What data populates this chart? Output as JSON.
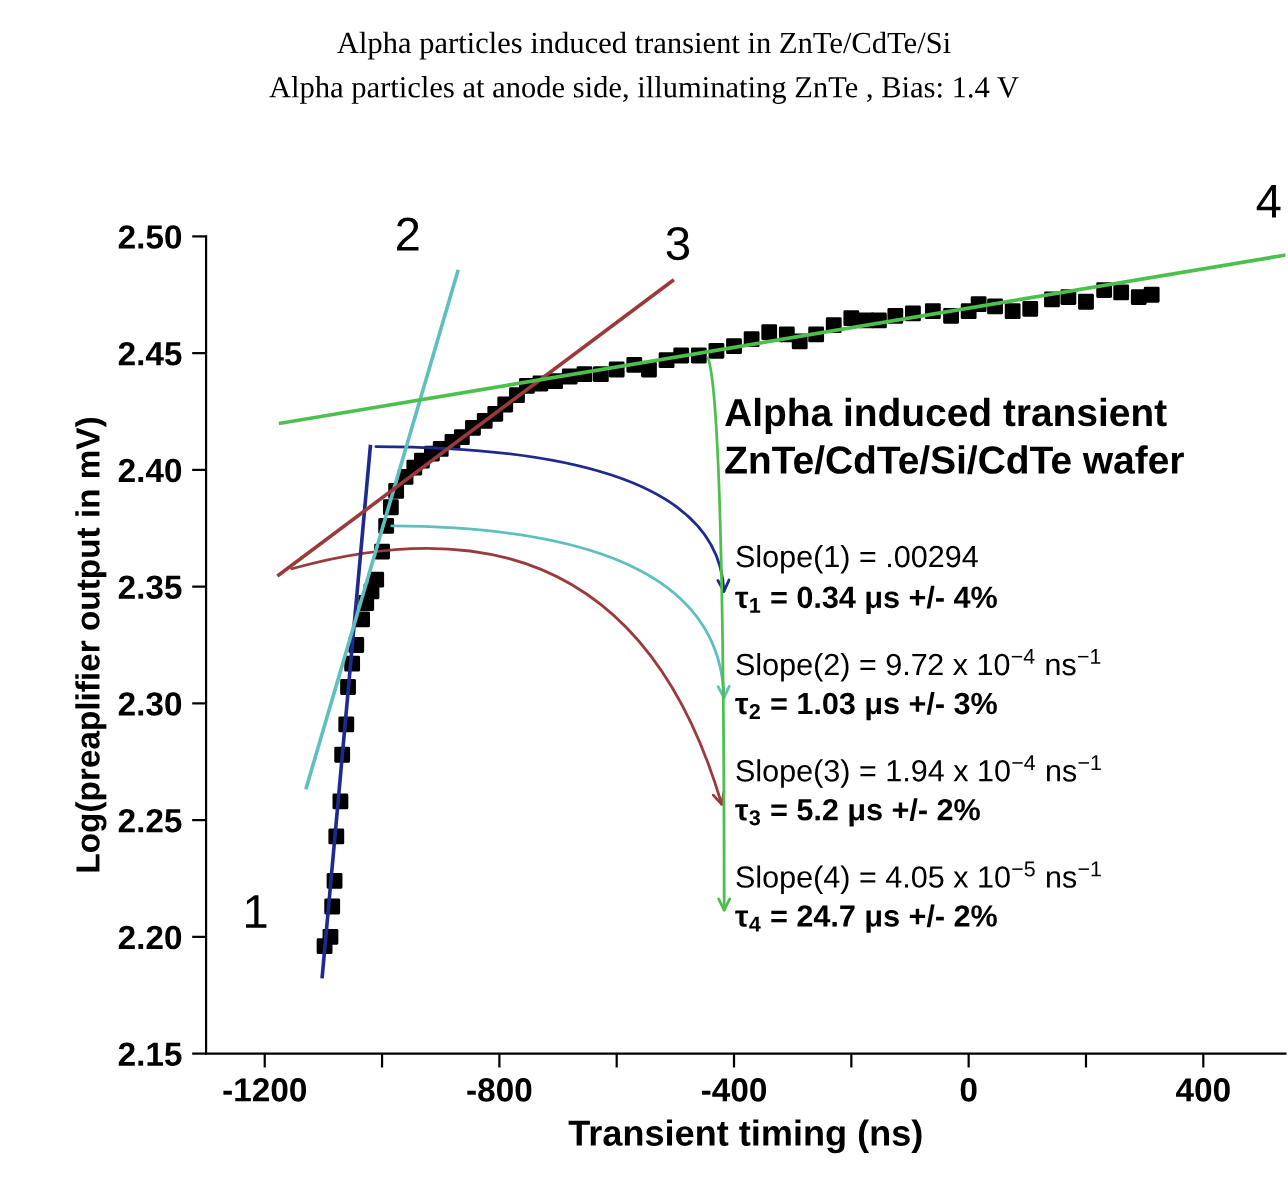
{
  "chart_data": {
    "type": "scatter",
    "title": "Alpha particles induced transient in ZnTe/CdTe/Si",
    "subtitle": "Alpha particles at anode side, illuminating ZnTe , Bias: 1.4 V",
    "xlabel": "Transient timing (ns)",
    "ylabel": "Log(preaplifier output in mV)",
    "xlim": [
      -1300,
      540
    ],
    "ylim": [
      2.15,
      2.5
    ],
    "xticks": [
      -1200,
      {
        "value": -1000,
        "label": null
      },
      -800,
      {
        "value": -600,
        "label": null
      },
      -400,
      {
        "value": -200,
        "label": null
      },
      0,
      {
        "value": 200,
        "label": null
      },
      400
    ],
    "yticks": [
      {
        "value": 2.15,
        "label": "2.15"
      },
      {
        "value": 2.2,
        "label": "2.20"
      },
      {
        "value": 2.25,
        "label": "2.25"
      },
      {
        "value": 2.3,
        "label": "2.30"
      },
      {
        "value": 2.35,
        "label": "2.35"
      },
      {
        "value": 2.4,
        "label": "2.40"
      },
      {
        "value": 2.45,
        "label": "2.45"
      },
      {
        "value": 2.5,
        "label": "2.50"
      }
    ],
    "grid": false,
    "legend": false,
    "marker": "square",
    "series": [
      {
        "color": "#000000",
        "x": [
          -1098,
          -1088,
          -1085,
          -1081,
          -1078,
          -1071,
          -1068,
          -1061,
          -1058,
          -1051,
          -1044,
          -1034,
          -1027,
          -1018,
          -1010,
          -1000,
          -993,
          -985,
          -976,
          -960,
          -945,
          -932,
          -915,
          -900,
          -880,
          -864,
          -845,
          -825,
          -807,
          -790,
          -770,
          -753,
          -730,
          -705,
          -680,
          -655,
          -627,
          -600,
          -570,
          -545,
          -515,
          -490,
          -460,
          -430,
          -400,
          -370,
          -340,
          -310,
          -288,
          -260,
          -230,
          -200,
          -175,
          -153,
          -125,
          -95,
          -61,
          -30,
          0,
          17,
          45,
          75,
          105,
          142,
          170,
          200,
          231,
          260,
          290,
          312
        ],
        "values": [
          2.196,
          2.2,
          2.213,
          2.224,
          2.243,
          2.258,
          2.278,
          2.291,
          2.307,
          2.317,
          2.325,
          2.336,
          2.343,
          2.348,
          2.353,
          2.365,
          2.376,
          2.384,
          2.391,
          2.397,
          2.401,
          2.404,
          2.407,
          2.409,
          2.412,
          2.414,
          2.418,
          2.421,
          2.424,
          2.428,
          2.432,
          2.436,
          2.437,
          2.438,
          2.44,
          2.441,
          2.441,
          2.443,
          2.445,
          2.443,
          2.447,
          2.449,
          2.449,
          2.451,
          2.453,
          2.456,
          2.459,
          2.458,
          2.455,
          2.458,
          2.462,
          2.465,
          2.464,
          2.464,
          2.466,
          2.467,
          2.468,
          2.466,
          2.468,
          2.471,
          2.47,
          2.468,
          2.469,
          2.473,
          2.474,
          2.472,
          2.477,
          2.476,
          2.474,
          2.475
        ]
      },
      {
        "type": "line",
        "marker": "none",
        "name": "1",
        "color": "#1f2a8f",
        "x": [
          -1102,
          -1020
        ],
        "values": [
          2.183,
          2.41
        ]
      },
      {
        "type": "line",
        "marker": "none",
        "name": "2",
        "color": "#5fbfbf",
        "x": [
          -1129,
          -871
        ],
        "values": [
          2.264,
          2.485
        ]
      },
      {
        "type": "line",
        "marker": "none",
        "name": "3",
        "color": "#9b3a3a",
        "x": [
          -1176,
          -505
        ],
        "values": [
          2.355,
          2.481
        ]
      },
      {
        "type": "line",
        "marker": "none",
        "name": "4",
        "color": "#4cc04c",
        "x": [
          -1173,
          540
        ],
        "values": [
          2.42,
          2.492
        ]
      }
    ],
    "annotations": [
      "Alpha induced transient\nZnTe/CdTe/Si/CdTe wafer",
      "Slope(1) = .00294",
      {
        "text": "τ$_{1}$ = 0.34 μs +/- 4%",
        "x": -1020,
        "y": 2.41
      },
      "Slope(2) = 9.72 x 10$^{−4}$ ns$^{−1}$",
      {
        "text": "τ$_{2}$ = 1.03 μs +/- 3%",
        "x": -993,
        "y": 2.376
      },
      "Slope(3) = 1.94 x 10$^{−4}$ ns$^{−1}$",
      {
        "text": "τ$_{3}$ = 5.2 μs +/- 2%",
        "x": -1163,
        "y": 2.357
      },
      "Slope(4) = 4.05 x 10$^{−5}$ ns$^{−1}$",
      {
        "text": "τ$_{4}$ = 24.7 μs +/- 2%",
        "x": -450,
        "y": 2.45
      }
    ]
  }
}
